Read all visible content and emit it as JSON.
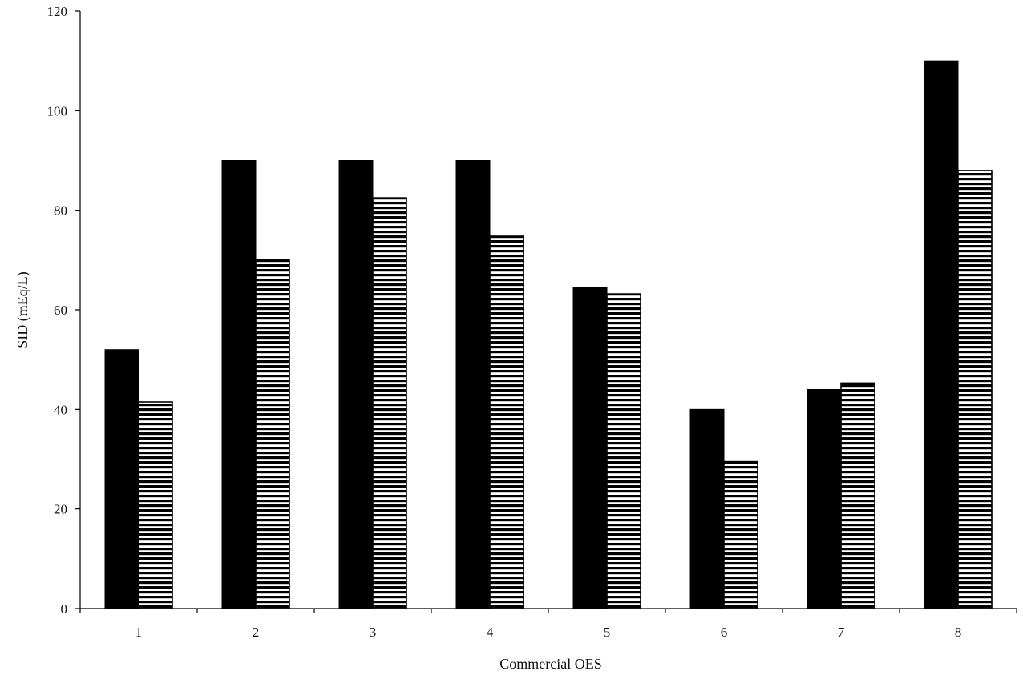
{
  "chart_data": {
    "type": "bar",
    "title": "",
    "xlabel": "Commercial OES",
    "ylabel": "SID (mEq/L)",
    "categories": [
      "1",
      "2",
      "3",
      "4",
      "5",
      "6",
      "7",
      "8"
    ],
    "ylim": [
      0,
      120
    ],
    "yticks": [
      0,
      20,
      40,
      60,
      80,
      100,
      120
    ],
    "grid": false,
    "legend": "none",
    "series": [
      {
        "values": [
          52,
          90,
          90,
          90,
          64.5,
          40,
          44,
          110
        ],
        "fill": "solid",
        "color": "#000000"
      },
      {
        "values": [
          41.5,
          70,
          82.5,
          74.8,
          63.2,
          29.5,
          45.3,
          88
        ],
        "fill": "horizontal-stripes",
        "color": "#000000"
      }
    ]
  }
}
